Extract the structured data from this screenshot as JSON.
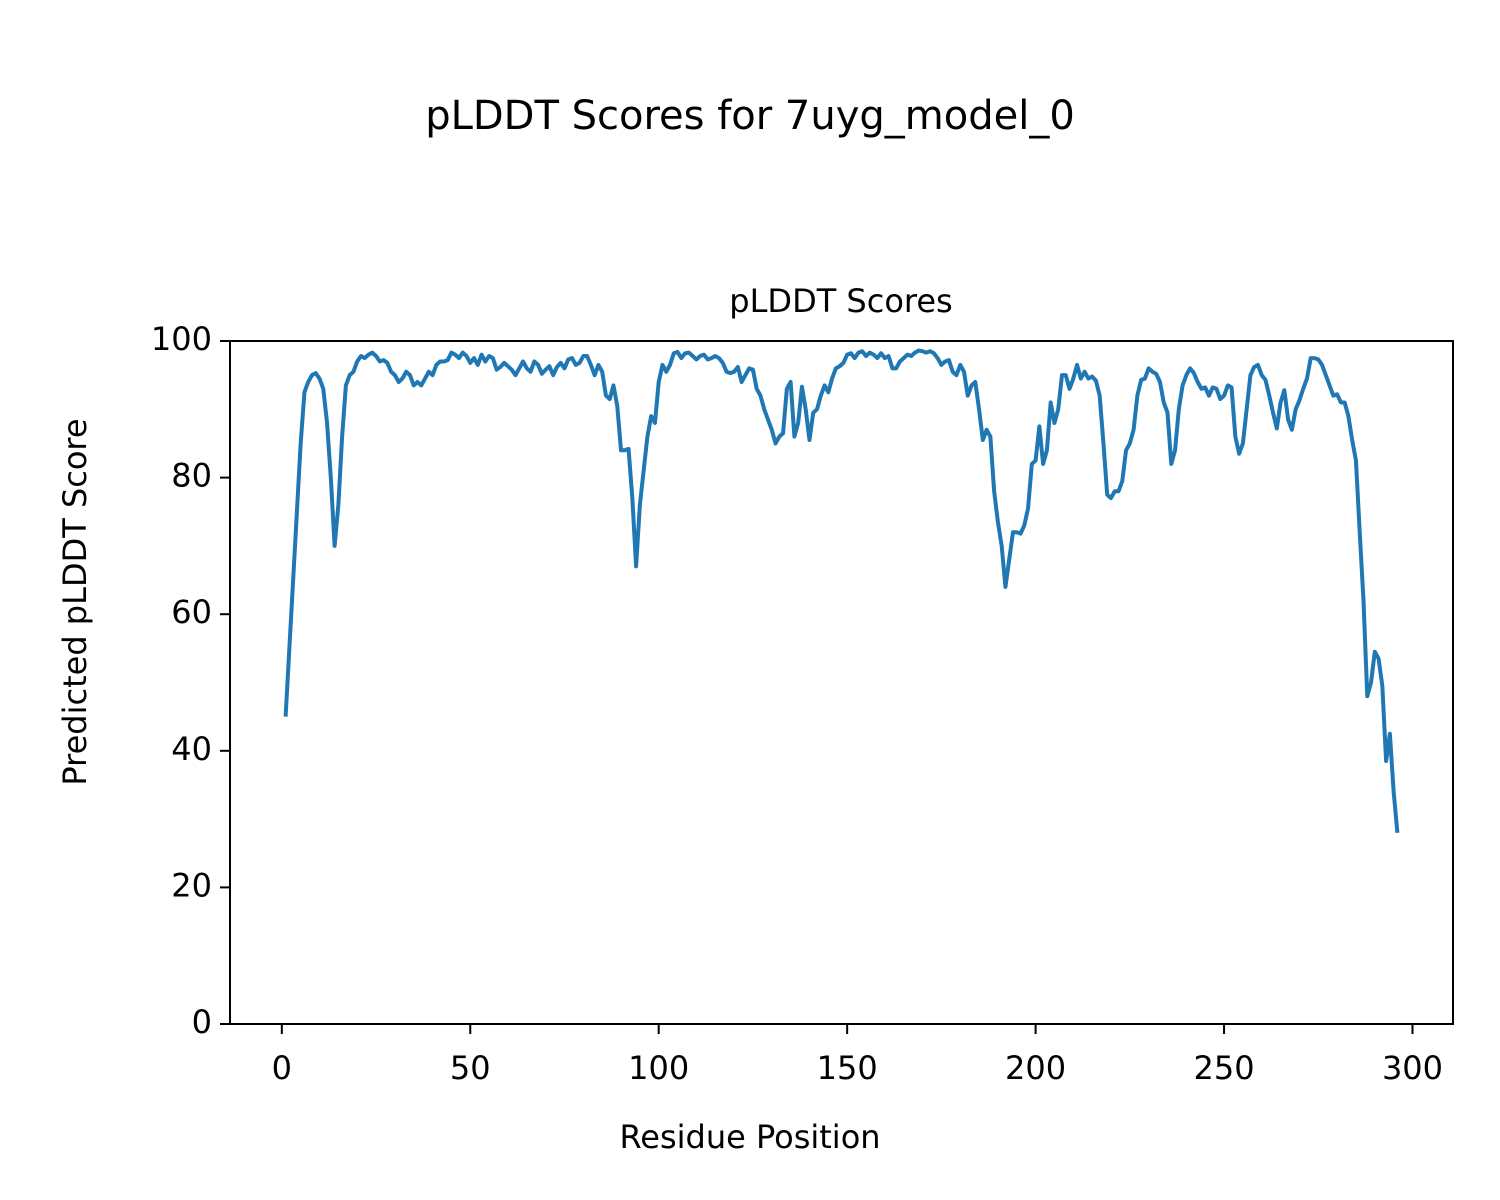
{
  "chart_data": {
    "type": "line",
    "title": "pLDDT Scores for 7uyg_model_0",
    "subtitle": "pLDDT Scores",
    "xlabel": "Residue Position",
    "ylabel": "Predicted pLDDT Score",
    "color": "#1f77b4",
    "xlim": [
      -13.75,
      310.75
    ],
    "ylim": [
      0,
      100
    ],
    "xticks": [
      0,
      50,
      100,
      150,
      200,
      250,
      300
    ],
    "yticks": [
      0,
      20,
      40,
      60,
      80,
      100
    ],
    "x": [
      1,
      2,
      3,
      4,
      5,
      6,
      7,
      8,
      9,
      10,
      11,
      12,
      13,
      14,
      15,
      16,
      17,
      18,
      19,
      20,
      21,
      22,
      23,
      24,
      25,
      26,
      27,
      28,
      29,
      30,
      31,
      32,
      33,
      34,
      35,
      36,
      37,
      38,
      39,
      40,
      41,
      42,
      43,
      44,
      45,
      46,
      47,
      48,
      49,
      50,
      51,
      52,
      53,
      54,
      55,
      56,
      57,
      58,
      59,
      60,
      61,
      62,
      63,
      64,
      65,
      66,
      67,
      68,
      69,
      70,
      71,
      72,
      73,
      74,
      75,
      76,
      77,
      78,
      79,
      80,
      81,
      82,
      83,
      84,
      85,
      86,
      87,
      88,
      89,
      90,
      91,
      92,
      93,
      94,
      95,
      96,
      97,
      98,
      99,
      100,
      101,
      102,
      103,
      104,
      105,
      106,
      107,
      108,
      109,
      110,
      111,
      112,
      113,
      114,
      115,
      116,
      117,
      118,
      119,
      120,
      121,
      122,
      123,
      124,
      125,
      126,
      127,
      128,
      129,
      130,
      131,
      132,
      133,
      134,
      135,
      136,
      137,
      138,
      139,
      140,
      141,
      142,
      143,
      144,
      145,
      146,
      147,
      148,
      149,
      150,
      151,
      152,
      153,
      154,
      155,
      156,
      157,
      158,
      159,
      160,
      161,
      162,
      163,
      164,
      165,
      166,
      167,
      168,
      169,
      170,
      171,
      172,
      173,
      174,
      175,
      176,
      177,
      178,
      179,
      180,
      181,
      182,
      183,
      184,
      185,
      186,
      187,
      188,
      189,
      190,
      191,
      192,
      193,
      194,
      195,
      196,
      197,
      198,
      199,
      200,
      201,
      202,
      203,
      204,
      205,
      206,
      207,
      208,
      209,
      210,
      211,
      212,
      213,
      214,
      215,
      216,
      217,
      218,
      219,
      220,
      221,
      222,
      223,
      224,
      225,
      226,
      227,
      228,
      229,
      230,
      231,
      232,
      233,
      234,
      235,
      236,
      237,
      238,
      239,
      240,
      241,
      242,
      243,
      244,
      245,
      246,
      247,
      248,
      249,
      250,
      251,
      252,
      253,
      254,
      255,
      256,
      257,
      258,
      259,
      260,
      261,
      262,
      263,
      264,
      265,
      266,
      267,
      268,
      269,
      270,
      271,
      272,
      273,
      274,
      275,
      276,
      277,
      278,
      279,
      280,
      281,
      282,
      283,
      284,
      285,
      286,
      287,
      288,
      289,
      290,
      291,
      292,
      293,
      294,
      295,
      296
    ],
    "values": [
      45,
      55,
      65,
      75,
      85,
      92.5,
      94,
      95,
      95.3,
      94.5,
      93,
      88,
      80,
      70,
      76,
      86,
      93.5,
      95,
      95.5,
      97,
      97.8,
      97.5,
      98,
      98.3,
      97.8,
      97,
      97.2,
      96.8,
      95.5,
      95,
      94,
      94.5,
      95.5,
      95,
      93.5,
      94,
      93.5,
      94.5,
      95.5,
      95,
      96.5,
      97,
      97,
      97.2,
      98.3,
      98,
      97.5,
      98.3,
      97.8,
      96.8,
      97.5,
      96.5,
      98,
      97,
      97.8,
      97.5,
      95.8,
      96.2,
      96.8,
      96.3,
      95.8,
      95,
      96,
      97,
      96,
      95.5,
      97,
      96.5,
      95.2,
      95.8,
      96.3,
      95,
      96.2,
      96.8,
      96,
      97.3,
      97.5,
      96.5,
      96.8,
      97.8,
      97.8,
      96.5,
      95,
      96.5,
      95.5,
      92,
      91.5,
      93.5,
      90.5,
      84,
      84,
      84.2,
      77,
      67,
      76,
      81,
      86,
      89,
      88,
      94,
      96.5,
      95.5,
      96.5,
      98.2,
      98.4,
      97.5,
      98.2,
      98.3,
      97.8,
      97.3,
      97.8,
      98,
      97.3,
      97.5,
      97.8,
      97.5,
      96.8,
      95.5,
      95.3,
      95.5,
      96.2,
      94,
      95,
      96,
      95.8,
      93,
      92,
      90,
      88.5,
      87,
      85,
      86,
      86.5,
      93,
      94,
      86,
      88,
      93.3,
      90,
      85.5,
      89.5,
      90,
      92,
      93.5,
      92.5,
      94.5,
      96,
      96.3,
      96.8,
      98,
      98.2,
      97.5,
      98.3,
      98.5,
      97.8,
      98.3,
      98,
      97.5,
      98.2,
      97.5,
      97.8,
      96,
      96,
      97,
      97.5,
      98,
      97.8,
      98.3,
      98.6,
      98.5,
      98.3,
      98.5,
      98.2,
      97.5,
      96.5,
      97,
      97.2,
      95.5,
      95,
      96.5,
      95.5,
      92,
      93.5,
      94,
      90,
      85.5,
      87,
      86,
      78,
      73.5,
      70,
      64,
      68,
      72,
      72,
      71.8,
      73,
      75.5,
      82,
      82.5,
      87.5,
      82,
      84,
      91,
      88,
      90,
      95,
      95,
      93,
      94.5,
      96.5,
      94.5,
      95.5,
      94.5,
      94.8,
      94.2,
      92,
      85,
      77.5,
      77,
      78,
      78,
      79.5,
      84,
      85,
      87,
      92,
      94.3,
      94.5,
      96,
      95.5,
      95.2,
      94,
      91,
      89.5,
      82,
      84,
      90,
      93.5,
      95,
      96,
      95.3,
      94,
      93,
      93.2,
      92,
      93.2,
      93,
      91.5,
      92,
      93.5,
      93.2,
      86,
      83.5,
      85,
      90,
      95,
      96.2,
      96.5,
      95,
      94.3,
      92,
      89.5,
      87.2,
      91,
      92.8,
      88.5,
      87,
      90,
      91.3,
      93,
      94.5,
      97.5,
      97.5,
      97.3,
      96.5,
      95,
      93.5,
      92,
      92.2,
      91,
      91,
      89,
      85.5,
      82.5,
      72,
      62,
      48,
      50,
      54.5,
      53.5,
      49.5,
      38.5,
      42.5,
      34,
      28
    ]
  }
}
